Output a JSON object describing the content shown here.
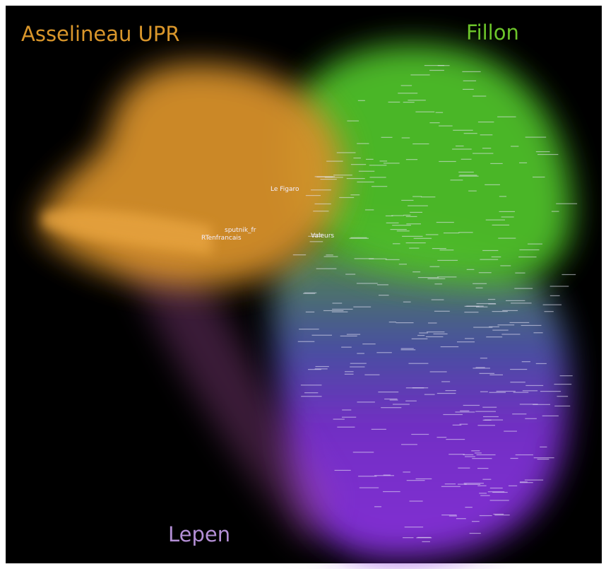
{
  "clusters": [
    {
      "label": "Asselineau UPR"
    },
    {
      "label": "Fillon"
    },
    {
      "label": "Lepen"
    }
  ],
  "nodes": [
    {
      "label": "RTenfrancais"
    },
    {
      "label": "sputnik_fr"
    },
    {
      "label": "Le Figaro"
    },
    {
      "label": "Valeurs"
    }
  ]
}
